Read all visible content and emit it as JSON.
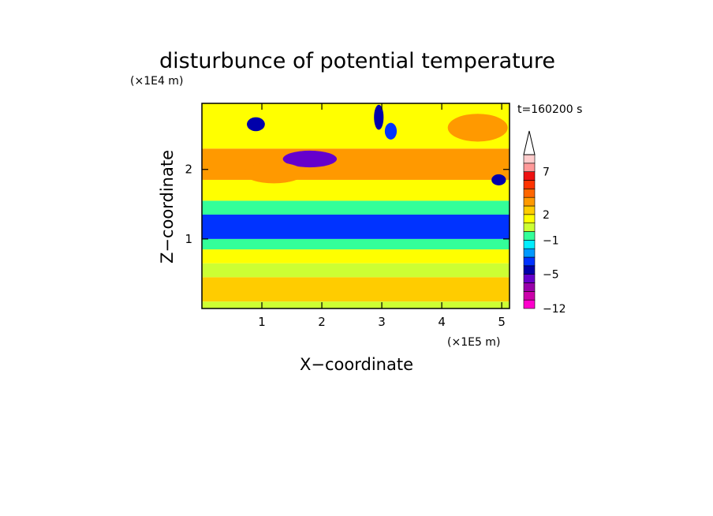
{
  "chart_data": {
    "type": "heatmap",
    "title": "disturbunce of potential temperature",
    "xlabel": "X−coordinate",
    "ylabel": "Z−coordinate",
    "x_unit": "(×1E5 m)",
    "y_unit": "(×1E4 m)",
    "time_label": "t=160200 s",
    "xlim": [
      0,
      5.13
    ],
    "ylim": [
      0,
      2.95
    ],
    "x_ticks": [
      1,
      2,
      3,
      4,
      5
    ],
    "x_tick_labels": [
      "1",
      "2",
      "3",
      "4",
      "5"
    ],
    "y_ticks": [
      1,
      2
    ],
    "y_tick_labels": [
      "1",
      "2"
    ],
    "colorbar": {
      "levels": [
        -12,
        -10,
        -8,
        -6,
        -5,
        -4,
        -3,
        -2,
        -1,
        0,
        1,
        2,
        3,
        4,
        5,
        6,
        7,
        8,
        9,
        10
      ],
      "labeled_levels": [
        -12,
        -5,
        -1,
        2,
        7
      ],
      "labels": [
        "−12",
        "−5",
        "−1",
        "2",
        "7"
      ],
      "extend": "max",
      "colors": [
        "#ff00cc",
        "#cc00aa",
        "#9900aa",
        "#6600cc",
        "#0000aa",
        "#0033ff",
        "#0099ff",
        "#00eeff",
        "#33ff99",
        "#ccff33",
        "#ffff00",
        "#ffcc00",
        "#ff9900",
        "#ff6600",
        "#ff3300",
        "#ee1111",
        "#ff9999",
        "#ffcccc",
        "#ffffff"
      ]
    },
    "field_bands": [
      {
        "z_range": [
          0.0,
          0.1
        ],
        "value": 0.3
      },
      {
        "z_range": [
          0.1,
          0.45
        ],
        "value": 2.3
      },
      {
        "z_range": [
          0.45,
          0.65
        ],
        "value": 0.6
      },
      {
        "z_range": [
          0.65,
          0.85
        ],
        "value": 1.4
      },
      {
        "z_range": [
          0.85,
          1.0
        ],
        "value": -0.7
      },
      {
        "z_range": [
          1.0,
          1.35
        ],
        "value": -3.5
      },
      {
        "z_range": [
          1.35,
          1.55
        ],
        "value": -0.4
      },
      {
        "z_range": [
          1.55,
          1.85
        ],
        "value": 1.3
      },
      {
        "z_range": [
          1.85,
          2.3
        ],
        "value": 3.2
      },
      {
        "z_range": [
          2.3,
          2.95
        ],
        "value": 1.8
      }
    ],
    "features": [
      {
        "x": 1.8,
        "z": 2.15,
        "value": -5.5,
        "rx": 0.45,
        "rz": 0.12
      },
      {
        "x": 0.9,
        "z": 2.65,
        "value": -4.5,
        "rx": 0.15,
        "rz": 0.1
      },
      {
        "x": 2.95,
        "z": 2.75,
        "value": -4.8,
        "rx": 0.08,
        "rz": 0.18
      },
      {
        "x": 3.15,
        "z": 2.55,
        "value": -4.0,
        "rx": 0.1,
        "rz": 0.12
      },
      {
        "x": 4.95,
        "z": 1.85,
        "value": -4.5,
        "rx": 0.12,
        "rz": 0.08
      },
      {
        "x": 1.2,
        "z": 1.95,
        "value": 3.8,
        "rx": 0.5,
        "rz": 0.15
      },
      {
        "x": 4.6,
        "z": 2.6,
        "value": 3.6,
        "rx": 0.5,
        "rz": 0.2
      }
    ]
  }
}
